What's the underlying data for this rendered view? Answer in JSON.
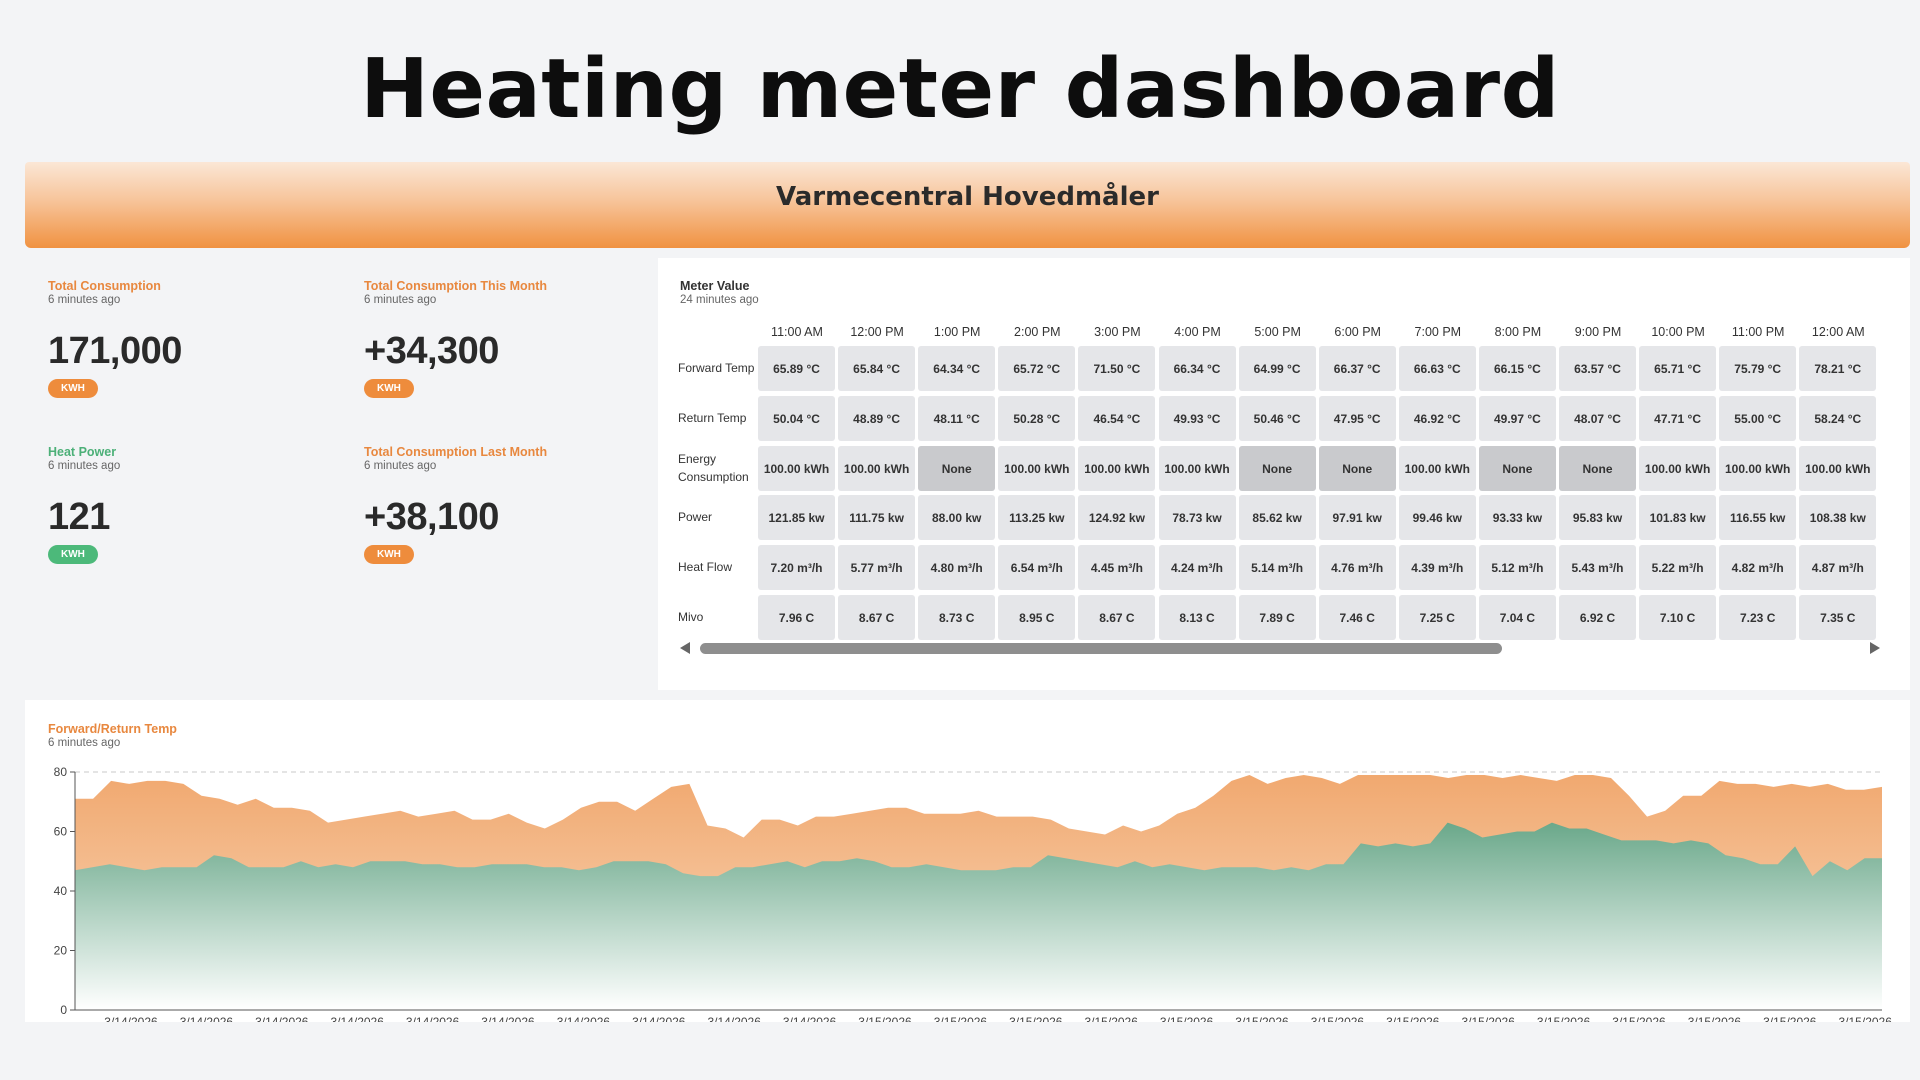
{
  "page": {
    "title": "Heating meter dashboard"
  },
  "banner": {
    "title": "Varmecentral Hovedmåler"
  },
  "kpis": [
    {
      "label": "Total Consumption",
      "ago": "6 minutes ago",
      "value": "171,000",
      "unit": "KWH",
      "color": "orange"
    },
    {
      "label": "Total Consumption This Month",
      "ago": "6 minutes ago",
      "value": "+34,300",
      "unit": "KWH",
      "color": "orange"
    },
    {
      "label": "Heat Power",
      "ago": "6 minutes ago",
      "value": "121",
      "unit": "KWH",
      "color": "green"
    },
    {
      "label": "Total Consumption Last Month",
      "ago": "6 minutes ago",
      "value": "+38,100",
      "unit": "KWH",
      "color": "orange"
    }
  ],
  "meter": {
    "label": "Meter Value",
    "ago": "24 minutes ago",
    "times": [
      "11:00 AM",
      "12:00 PM",
      "1:00 PM",
      "2:00 PM",
      "3:00 PM",
      "4:00 PM",
      "5:00 PM",
      "6:00 PM",
      "7:00 PM",
      "8:00 PM",
      "9:00 PM",
      "10:00 PM",
      "11:00 PM",
      "12:00 AM"
    ],
    "rows": [
      {
        "label": "Forward Temp",
        "values": [
          "65.89 °C",
          "65.84 °C",
          "64.34 °C",
          "65.72 °C",
          "71.50 °C",
          "66.34 °C",
          "64.99 °C",
          "66.37 °C",
          "66.63 °C",
          "66.15 °C",
          "63.57 °C",
          "65.71 °C",
          "75.79 °C",
          "78.21 °C"
        ]
      },
      {
        "label": "Return Temp",
        "values": [
          "50.04 °C",
          "48.89 °C",
          "48.11 °C",
          "50.28 °C",
          "46.54 °C",
          "49.93 °C",
          "50.46 °C",
          "47.95 °C",
          "46.92 °C",
          "49.97 °C",
          "48.07 °C",
          "47.71 °C",
          "55.00 °C",
          "58.24 °C"
        ]
      },
      {
        "label": "Energy Consumption",
        "values": [
          "100.00 kWh",
          "100.00 kWh",
          "None",
          "100.00 kWh",
          "100.00 kWh",
          "100.00 kWh",
          "None",
          "None",
          "100.00 kWh",
          "None",
          "None",
          "100.00 kWh",
          "100.00 kWh",
          "100.00 kWh"
        ]
      },
      {
        "label": "Power",
        "values": [
          "121.85 kw",
          "111.75 kw",
          "88.00 kw",
          "113.25 kw",
          "124.92 kw",
          "78.73 kw",
          "85.62 kw",
          "97.91 kw",
          "99.46 kw",
          "93.33 kw",
          "95.83 kw",
          "101.83 kw",
          "116.55 kw",
          "108.38 kw"
        ]
      },
      {
        "label": "Heat Flow",
        "values": [
          "7.20 m³/h",
          "5.77 m³/h",
          "4.80 m³/h",
          "6.54 m³/h",
          "4.45 m³/h",
          "4.24 m³/h",
          "5.14 m³/h",
          "4.76 m³/h",
          "4.39 m³/h",
          "5.12 m³/h",
          "5.43 m³/h",
          "5.22 m³/h",
          "4.82 m³/h",
          "4.87 m³/h"
        ]
      },
      {
        "label": "Mivo",
        "values": [
          "7.96 C",
          "8.67 C",
          "8.73 C",
          "8.95 C",
          "8.67 C",
          "8.13 C",
          "7.89 C",
          "7.46 C",
          "7.25 C",
          "7.04 C",
          "6.92 C",
          "7.10 C",
          "7.23 C",
          "7.35 C"
        ]
      }
    ]
  },
  "chart_panel": {
    "label": "Forward/Return Temp",
    "ago": "6 minutes ago"
  },
  "chart_data": {
    "type": "area",
    "title": "Forward/Return Temp",
    "ylim": [
      0,
      80
    ],
    "yticks": [
      0,
      20,
      40,
      60,
      80
    ],
    "grid": "dashed line at 80",
    "x_labels": [
      "3/14/2026",
      "3/14/2026",
      "3/14/2026",
      "3/14/2026",
      "3/14/2026",
      "3/14/2026",
      "3/14/2026",
      "3/14/2026",
      "3/14/2026",
      "3/14/2026",
      "3/15/2026",
      "3/15/2026",
      "3/15/2026",
      "3/15/2026",
      "3/15/2026",
      "3/15/2026",
      "3/15/2026",
      "3/15/2026",
      "3/15/2026",
      "3/15/2026",
      "3/15/2026",
      "3/15/2026",
      "3/15/2026",
      "3/15/2026"
    ],
    "series": [
      {
        "values": [
          71,
          71,
          77,
          76,
          77,
          77,
          76,
          72,
          71,
          69,
          71,
          68,
          68,
          67,
          63,
          64,
          65,
          66,
          67,
          65,
          66,
          67,
          64,
          64,
          66,
          63,
          61,
          64,
          68,
          70,
          70,
          67,
          71,
          75,
          76,
          62,
          61,
          58,
          64,
          64,
          62,
          65,
          65,
          66,
          67,
          68,
          68,
          66,
          66,
          66,
          67,
          65,
          65,
          65,
          64,
          61,
          60,
          59,
          62,
          60,
          62,
          66,
          68,
          72,
          77,
          79,
          76,
          78,
          79,
          78,
          76,
          79,
          79,
          79,
          79,
          79,
          78,
          79,
          79,
          78,
          79,
          78,
          77,
          79,
          79,
          78,
          72,
          65,
          67,
          72,
          72,
          77,
          76,
          76,
          75,
          76,
          75,
          76,
          74,
          74,
          75
        ],
        "color": "#f0a468"
      },
      {
        "values": [
          47,
          48,
          49,
          48,
          47,
          48,
          48,
          48,
          52,
          51,
          48,
          48,
          48,
          50,
          48,
          49,
          48,
          50,
          50,
          50,
          49,
          49,
          48,
          48,
          49,
          49,
          49,
          48,
          48,
          47,
          48,
          50,
          50,
          50,
          49,
          46,
          45,
          45,
          48,
          48,
          49,
          50,
          48,
          50,
          50,
          51,
          50,
          48,
          48,
          49,
          48,
          47,
          47,
          47,
          48,
          48,
          52,
          51,
          50,
          49,
          48,
          50,
          48,
          49,
          48,
          47,
          48,
          48,
          48,
          47,
          48,
          47,
          49,
          49,
          56,
          55,
          56,
          55,
          56,
          63,
          61,
          58,
          59,
          60,
          60,
          63,
          61,
          61,
          59,
          57,
          57,
          57,
          56,
          57,
          56,
          52,
          51,
          49,
          49,
          55,
          45,
          50,
          47,
          51,
          51
        ],
        "color": "#6aa88a"
      }
    ]
  },
  "colors": {
    "accent_orange": "#ee8c3c",
    "accent_green": "#4cb97a",
    "forward_fill": "#f0a468",
    "return_fill": "#6aa88a"
  }
}
